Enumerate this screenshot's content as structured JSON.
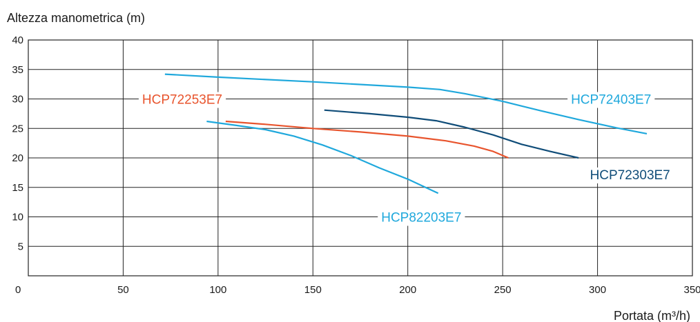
{
  "chart_data": {
    "type": "line",
    "ylabel": "Altezza manometrica (m)",
    "xlabel": "Portata (m³/h)",
    "xlim": [
      0,
      350
    ],
    "ylim": [
      0,
      40
    ],
    "x_ticks": [
      0,
      50,
      100,
      150,
      200,
      250,
      300,
      350
    ],
    "y_ticks": [
      5,
      10,
      15,
      20,
      25,
      30,
      35,
      40
    ],
    "grid": true,
    "series": [
      {
        "name": "HCP72403E7",
        "color": "#1fa8dc",
        "points": [
          [
            72,
            34.2
          ],
          [
            100,
            33.7
          ],
          [
            150,
            32.9
          ],
          [
            200,
            32.0
          ],
          [
            217,
            31.6
          ],
          [
            230,
            30.9
          ],
          [
            250,
            29.6
          ],
          [
            270,
            28.0
          ],
          [
            290,
            26.5
          ],
          [
            310,
            25.1
          ],
          [
            326,
            24.1
          ]
        ]
      },
      {
        "name": "HCP72253E7",
        "color": "#e8542d",
        "points": [
          [
            104,
            26.2
          ],
          [
            125,
            25.7
          ],
          [
            150,
            25.0
          ],
          [
            175,
            24.4
          ],
          [
            200,
            23.7
          ],
          [
            220,
            22.9
          ],
          [
            235,
            22.0
          ],
          [
            245,
            21.1
          ],
          [
            253,
            20.0
          ]
        ]
      },
      {
        "name": "HCP72303E7",
        "color": "#0f4c78",
        "points": [
          [
            156,
            28.1
          ],
          [
            180,
            27.5
          ],
          [
            200,
            26.9
          ],
          [
            215,
            26.3
          ],
          [
            230,
            25.2
          ],
          [
            245,
            23.9
          ],
          [
            260,
            22.3
          ],
          [
            275,
            21.1
          ],
          [
            290,
            20.0
          ]
        ]
      },
      {
        "name": "HCP82203E7",
        "color": "#1fa8dc",
        "points": [
          [
            94,
            26.2
          ],
          [
            110,
            25.5
          ],
          [
            125,
            24.8
          ],
          [
            140,
            23.7
          ],
          [
            155,
            22.2
          ],
          [
            170,
            20.4
          ],
          [
            185,
            18.3
          ],
          [
            200,
            16.4
          ],
          [
            210,
            14.9
          ],
          [
            216,
            14.0
          ]
        ]
      }
    ],
    "annotations": [
      {
        "series": "HCP72253E7",
        "text": "HCP72253E7",
        "x": 60,
        "y": 30,
        "leader": [
          [
            10,
            95
          ]
        ]
      },
      {
        "series": "HCP72403E7",
        "text": "HCP72403E7",
        "x": 286,
        "y": 30,
        "leader": [
          [
            250,
            278
          ],
          [
            308,
            350
          ]
        ]
      },
      {
        "series": "HCP72303E7",
        "text": "HCP72303E7",
        "x": 296,
        "y": 17.2,
        "leader": []
      },
      {
        "series": "HCP82203E7",
        "text": "HCP82203E7",
        "x": 186,
        "y": 10,
        "leader": [
          [
            10,
            178
          ],
          [
            196,
            250
          ]
        ]
      }
    ]
  }
}
